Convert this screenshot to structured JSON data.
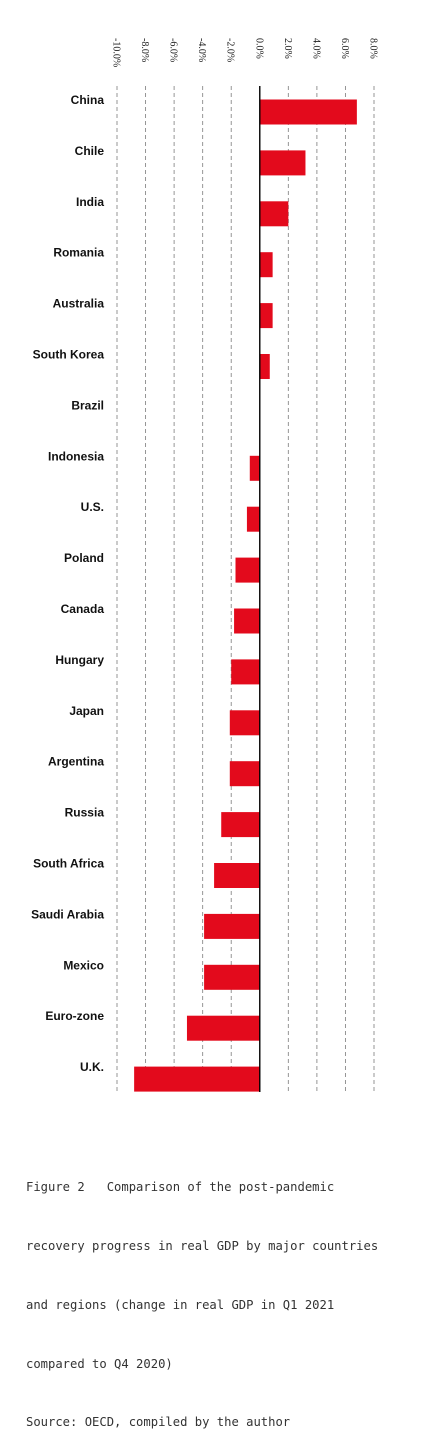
{
  "chart_data": {
    "type": "bar",
    "orientation": "horizontal",
    "bar_color": "#e30a1c",
    "xlim": [
      -10,
      8
    ],
    "x_ticks": [
      -10,
      -8,
      -6,
      -4,
      -2,
      0,
      2,
      4,
      6,
      8
    ],
    "x_tick_labels": [
      "-10.0%",
      "-8.0%",
      "-6.0%",
      "-4.0%",
      "-2.0%",
      "0.0%",
      "2.0%",
      "4.0%",
      "6.0%",
      "8.0%"
    ],
    "grid": "vertical dashed",
    "categories": [
      "China",
      "Chile",
      "India",
      "Romania",
      "Australia",
      "South Korea",
      "Brazil",
      "Indonesia",
      "U.S.",
      "Poland",
      "Canada",
      "Hungary",
      "Japan",
      "Argentina",
      "Russia",
      "South Africa",
      "Saudi Arabia",
      "Mexico",
      "Euro-zone",
      "U.K."
    ],
    "values": [
      6.8,
      3.2,
      2.0,
      0.9,
      0.9,
      0.7,
      0.0,
      -0.7,
      -0.9,
      -1.7,
      -1.8,
      -2.0,
      -2.1,
      -2.1,
      -2.7,
      -3.2,
      -3.9,
      -3.9,
      -5.1,
      -8.8
    ]
  },
  "caption": {
    "lines": [
      "Figure 2   Comparison of the post-pandemic",
      "recovery progress in real GDP by major countries",
      "and regions (change in real GDP in Q1 2021",
      "compared to Q4 2020)"
    ],
    "source": "Source: OECD, compiled by the author"
  }
}
